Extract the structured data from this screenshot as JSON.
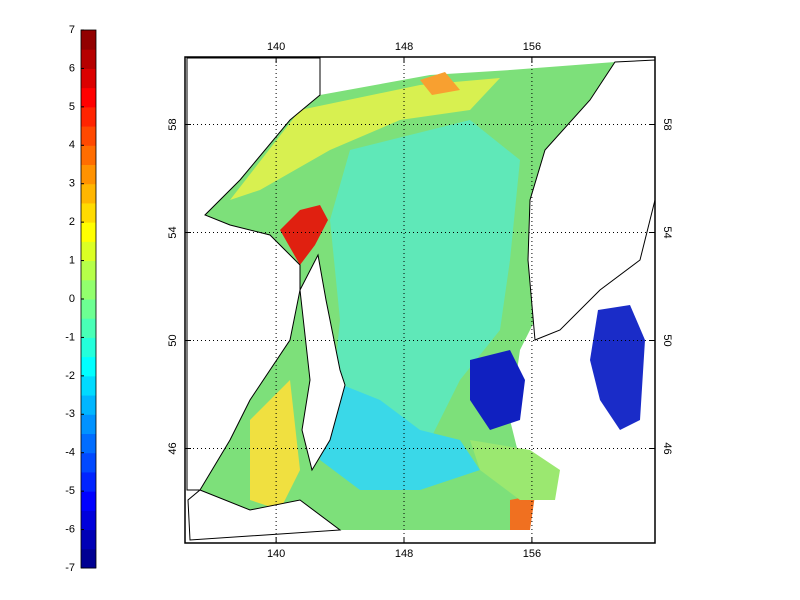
{
  "map": {
    "colorbar": {
      "lim": [
        -7,
        7
      ],
      "ticks": [
        -7,
        -6,
        -5,
        -4,
        -3,
        -2,
        -1,
        0,
        1,
        2,
        3,
        4,
        5,
        6,
        7
      ],
      "step": 0.5,
      "colormap": "jet"
    },
    "lon": {
      "lim": [
        134.3,
        163.7
      ],
      "ticks": [
        140,
        148,
        156
      ]
    },
    "lat": {
      "lim": [
        42.5,
        60.5
      ],
      "ticks": [
        46,
        50,
        54,
        58
      ]
    },
    "grid": true
  }
}
